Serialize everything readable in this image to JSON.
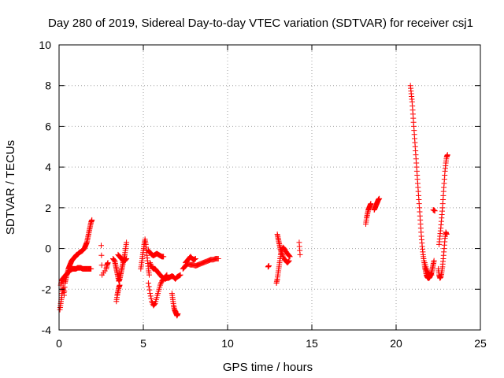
{
  "chart_data": {
    "type": "scatter",
    "title": "Day 280 of 2019, Sidereal Day-to-day VTEC variation (SDTVAR) for receiver csj1",
    "xlabel": "GPS time / hours",
    "ylabel": "SDTVAR / TECUs",
    "xlim": [
      0,
      25
    ],
    "ylim": [
      -4,
      10
    ],
    "xticks": [
      0,
      5,
      10,
      15,
      20,
      25
    ],
    "yticks": [
      -4,
      -2,
      0,
      2,
      4,
      6,
      8,
      10
    ],
    "xtick_labels": [
      "0",
      "5",
      "10",
      "15",
      "20",
      "25"
    ],
    "ytick_labels": [
      "-4",
      "-2",
      "0",
      "2",
      "4",
      "6",
      "8",
      "10"
    ],
    "grid": true,
    "marker": "+",
    "series": [
      {
        "name": "SDTVAR",
        "color": "#ff0000",
        "segments": [
          [
            [
              0.05,
              -3.0
            ],
            [
              0.1,
              -2.7
            ],
            [
              0.15,
              -2.4
            ],
            [
              0.2,
              -2.1
            ],
            [
              0.25,
              -1.9
            ],
            [
              0.3,
              -2.3
            ],
            [
              0.35,
              -1.7
            ],
            [
              0.4,
              -1.5
            ],
            [
              0.45,
              -1.3
            ],
            [
              0.5,
              -1.2
            ],
            [
              0.55,
              -1.0
            ],
            [
              0.6,
              -0.9
            ],
            [
              0.65,
              -0.8
            ],
            [
              0.7,
              -0.7
            ],
            [
              0.75,
              -0.6
            ],
            [
              0.8,
              -0.55
            ],
            [
              0.85,
              -0.5
            ],
            [
              0.9,
              -0.45
            ],
            [
              0.95,
              -0.4
            ],
            [
              1.0,
              -0.35
            ],
            [
              1.05,
              -0.3
            ],
            [
              1.1,
              -0.3
            ],
            [
              1.15,
              -0.25
            ],
            [
              1.2,
              -0.2
            ],
            [
              1.3,
              -0.15
            ],
            [
              1.4,
              -0.1
            ],
            [
              1.5,
              0.0
            ],
            [
              1.55,
              0.1
            ],
            [
              1.6,
              0.2
            ],
            [
              1.65,
              0.3
            ],
            [
              1.7,
              0.5
            ],
            [
              1.75,
              0.7
            ],
            [
              1.8,
              0.9
            ],
            [
              1.85,
              1.1
            ],
            [
              1.9,
              1.3
            ],
            [
              1.95,
              1.4
            ]
          ],
          [
            [
              0.1,
              -1.8
            ],
            [
              0.15,
              -1.6
            ],
            [
              0.2,
              -1.5
            ],
            [
              0.3,
              -1.4
            ],
            [
              0.4,
              -1.3
            ],
            [
              0.5,
              -1.2
            ],
            [
              0.6,
              -1.1
            ],
            [
              0.7,
              -1.05
            ],
            [
              0.8,
              -1.0
            ],
            [
              0.9,
              -1.0
            ],
            [
              1.0,
              -1.0
            ],
            [
              1.1,
              -0.95
            ],
            [
              1.2,
              -0.95
            ],
            [
              1.3,
              -0.95
            ],
            [
              1.4,
              -1.0
            ],
            [
              1.5,
              -1.0
            ],
            [
              1.6,
              -1.0
            ],
            [
              1.7,
              -1.0
            ],
            [
              1.8,
              -1.0
            ],
            [
              1.9,
              -1.0
            ]
          ],
          [
            [
              2.5,
              0.15
            ],
            [
              2.55,
              -1.3
            ],
            [
              2.8,
              -1.0
            ],
            [
              2.85,
              -0.8
            ],
            [
              2.9,
              -0.7
            ]
          ],
          [
            [
              3.2,
              -0.5
            ],
            [
              3.3,
              -0.6
            ],
            [
              3.35,
              -0.8
            ],
            [
              3.4,
              -1.0
            ],
            [
              3.45,
              -1.2
            ],
            [
              3.5,
              -1.4
            ],
            [
              3.55,
              -1.6
            ],
            [
              3.6,
              -1.5
            ],
            [
              3.65,
              -1.3
            ],
            [
              3.7,
              -1.1
            ],
            [
              3.75,
              -0.9
            ],
            [
              3.8,
              -0.7
            ],
            [
              3.85,
              -0.5
            ],
            [
              3.9,
              -0.3
            ],
            [
              3.95,
              0.0
            ],
            [
              4.0,
              0.3
            ]
          ],
          [
            [
              3.4,
              -2.6
            ],
            [
              3.45,
              -2.3
            ],
            [
              3.5,
              -2.1
            ],
            [
              3.55,
              -1.9
            ],
            [
              3.6,
              -1.8
            ]
          ],
          [
            [
              3.5,
              -0.3
            ],
            [
              3.6,
              -0.4
            ],
            [
              3.7,
              -0.5
            ],
            [
              3.8,
              -0.6
            ],
            [
              3.9,
              -0.6
            ],
            [
              4.0,
              -0.5
            ]
          ],
          [
            [
              4.85,
              -1.0
            ],
            [
              4.9,
              -0.7
            ],
            [
              4.95,
              -0.4
            ],
            [
              5.0,
              -0.1
            ],
            [
              5.05,
              0.2
            ],
            [
              5.1,
              0.45
            ],
            [
              5.15,
              0.2
            ],
            [
              5.2,
              -0.2
            ],
            [
              5.25,
              -0.6
            ],
            [
              5.3,
              -1.0
            ],
            [
              5.35,
              -1.3
            ]
          ],
          [
            [
              5.3,
              -0.1
            ],
            [
              5.4,
              -0.2
            ],
            [
              5.5,
              -0.3
            ],
            [
              5.6,
              -0.35
            ],
            [
              5.7,
              -0.3
            ],
            [
              5.8,
              -0.25
            ],
            [
              5.9,
              -0.3
            ],
            [
              6.0,
              -0.35
            ],
            [
              6.1,
              -0.4
            ],
            [
              6.2,
              -0.4
            ]
          ],
          [
            [
              5.3,
              -1.7
            ],
            [
              5.4,
              -2.2
            ],
            [
              5.5,
              -2.6
            ],
            [
              5.6,
              -2.8
            ],
            [
              5.7,
              -2.7
            ],
            [
              5.8,
              -2.4
            ],
            [
              5.9,
              -2.1
            ],
            [
              6.0,
              -1.8
            ],
            [
              6.1,
              -1.6
            ],
            [
              6.2,
              -1.5
            ],
            [
              6.3,
              -1.4
            ],
            [
              6.4,
              -1.3
            ]
          ],
          [
            [
              5.4,
              -0.7
            ],
            [
              5.5,
              -0.9
            ],
            [
              5.6,
              -1.0
            ],
            [
              5.7,
              -1.0
            ],
            [
              5.8,
              -1.1
            ],
            [
              5.9,
              -1.2
            ],
            [
              6.0,
              -1.3
            ],
            [
              6.1,
              -1.4
            ],
            [
              6.2,
              -1.45
            ],
            [
              6.3,
              -1.5
            ],
            [
              6.4,
              -1.45
            ],
            [
              6.5,
              -1.45
            ],
            [
              6.6,
              -1.4
            ],
            [
              6.7,
              -1.35
            ],
            [
              6.8,
              -1.4
            ],
            [
              6.9,
              -1.5
            ],
            [
              7.0,
              -1.4
            ],
            [
              7.1,
              -1.35
            ],
            [
              7.2,
              -1.3
            ]
          ],
          [
            [
              6.7,
              -2.2
            ],
            [
              6.75,
              -2.5
            ],
            [
              6.8,
              -2.8
            ],
            [
              6.85,
              -3.0
            ],
            [
              6.9,
              -3.1
            ],
            [
              6.95,
              -3.2
            ],
            [
              7.0,
              -3.3
            ],
            [
              7.05,
              -3.2
            ]
          ],
          [
            [
              7.35,
              -1.0
            ],
            [
              7.45,
              -0.9
            ],
            [
              7.55,
              -0.8
            ],
            [
              7.65,
              -0.75
            ],
            [
              7.8,
              -0.8
            ],
            [
              7.95,
              -0.8
            ],
            [
              8.1,
              -0.85
            ],
            [
              8.25,
              -0.8
            ],
            [
              8.4,
              -0.75
            ],
            [
              8.55,
              -0.7
            ],
            [
              8.7,
              -0.65
            ],
            [
              8.85,
              -0.6
            ],
            [
              9.0,
              -0.55
            ],
            [
              9.15,
              -0.55
            ],
            [
              9.3,
              -0.5
            ],
            [
              9.45,
              -0.5
            ]
          ],
          [
            [
              7.5,
              -0.7
            ],
            [
              7.6,
              -0.6
            ],
            [
              7.7,
              -0.5
            ],
            [
              7.8,
              -0.4
            ],
            [
              7.9,
              -0.5
            ],
            [
              8.0,
              -0.55
            ],
            [
              8.1,
              -0.5
            ]
          ],
          [
            [
              12.4,
              -0.9
            ],
            [
              12.45,
              -0.85
            ]
          ],
          [
            [
              12.9,
              -1.7
            ],
            [
              12.95,
              -1.5
            ],
            [
              13.0,
              -1.2
            ],
            [
              13.05,
              -0.9
            ],
            [
              13.1,
              -0.6
            ],
            [
              13.15,
              -0.3
            ],
            [
              13.2,
              -0.1
            ],
            [
              13.3,
              0.05
            ],
            [
              13.4,
              -0.05
            ],
            [
              13.5,
              -0.2
            ],
            [
              13.6,
              -0.3
            ],
            [
              13.7,
              -0.4
            ]
          ],
          [
            [
              12.95,
              0.7
            ],
            [
              13.0,
              0.5
            ],
            [
              13.05,
              0.3
            ],
            [
              13.1,
              0.1
            ],
            [
              13.15,
              -0.1
            ],
            [
              13.25,
              -0.3
            ],
            [
              13.35,
              -0.5
            ],
            [
              13.45,
              -0.6
            ],
            [
              13.55,
              -0.7
            ],
            [
              13.65,
              -0.6
            ]
          ],
          [
            [
              14.25,
              0.3
            ],
            [
              14.3,
              -0.3
            ]
          ],
          [
            [
              18.2,
              1.2
            ],
            [
              18.25,
              1.5
            ],
            [
              18.3,
              1.7
            ],
            [
              18.35,
              1.9
            ],
            [
              18.4,
              2.0
            ],
            [
              18.45,
              2.1
            ],
            [
              18.5,
              2.2
            ]
          ],
          [
            [
              18.7,
              1.9
            ],
            [
              18.75,
              2.0
            ],
            [
              18.8,
              2.1
            ],
            [
              18.85,
              2.2
            ],
            [
              18.9,
              2.3
            ],
            [
              18.95,
              2.4
            ],
            [
              19.0,
              2.45
            ]
          ],
          [
            [
              20.85,
              8.0
            ],
            [
              20.9,
              7.6
            ],
            [
              20.95,
              7.2
            ],
            [
              21.0,
              6.6
            ],
            [
              21.05,
              6.0
            ],
            [
              21.1,
              5.4
            ],
            [
              21.15,
              4.8
            ],
            [
              21.2,
              4.2
            ],
            [
              21.25,
              3.6
            ],
            [
              21.3,
              3.0
            ],
            [
              21.35,
              2.4
            ],
            [
              21.4,
              1.8
            ],
            [
              21.45,
              1.2
            ],
            [
              21.5,
              0.6
            ],
            [
              21.55,
              0.1
            ],
            [
              21.6,
              -0.3
            ],
            [
              21.65,
              -0.6
            ],
            [
              21.7,
              -0.9
            ],
            [
              21.75,
              -1.1
            ],
            [
              21.8,
              -1.3
            ],
            [
              21.85,
              -1.4
            ],
            [
              21.9,
              -1.45
            ],
            [
              21.95,
              -1.45
            ],
            [
              22.0,
              -1.4
            ],
            [
              22.05,
              -1.3
            ],
            [
              22.1,
              -1.2
            ],
            [
              22.15,
              -1.0
            ],
            [
              22.2,
              -0.8
            ],
            [
              22.25,
              -0.6
            ]
          ],
          [
            [
              21.7,
              -0.7
            ],
            [
              21.8,
              -1.0
            ],
            [
              21.9,
              -1.2
            ],
            [
              22.0,
              -1.3
            ],
            [
              22.1,
              -1.3
            ]
          ],
          [
            [
              22.2,
              1.9
            ],
            [
              22.3,
              1.85
            ]
          ],
          [
            [
              22.5,
              -1.0
            ],
            [
              22.55,
              -1.3
            ],
            [
              22.6,
              -1.45
            ],
            [
              22.65,
              -1.4
            ],
            [
              22.7,
              -1.2
            ],
            [
              22.75,
              -0.9
            ],
            [
              22.8,
              -0.5
            ],
            [
              22.85,
              0.0
            ],
            [
              22.9,
              0.5
            ],
            [
              22.95,
              0.8
            ],
            [
              23.0,
              0.7
            ]
          ],
          [
            [
              22.55,
              0.2
            ],
            [
              22.6,
              0.6
            ],
            [
              22.65,
              1.0
            ],
            [
              22.7,
              1.5
            ],
            [
              22.75,
              2.0
            ],
            [
              22.8,
              2.6
            ],
            [
              22.85,
              3.2
            ],
            [
              22.9,
              3.8
            ],
            [
              22.95,
              4.2
            ],
            [
              23.0,
              4.5
            ],
            [
              23.05,
              4.6
            ]
          ]
        ]
      }
    ]
  }
}
